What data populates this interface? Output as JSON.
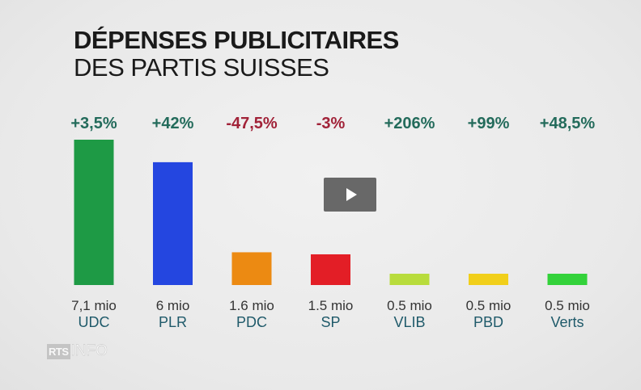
{
  "title": "DÉPENSES PUBLICITAIRES",
  "subtitle": "DES PARTIS SUISSES",
  "logo": {
    "left": "RTS",
    "right": "INFO"
  },
  "colors": {
    "positive": "#236b5b",
    "negative": "#a12238",
    "background": "#ededed"
  },
  "chart_data": {
    "type": "bar",
    "title": "DÉPENSES PUBLICITAIRES DES PARTIS SUISSES",
    "categories": [
      "UDC",
      "PLR",
      "PDC",
      "SP",
      "VLIB",
      "PBD",
      "Verts"
    ],
    "values": [
      7.1,
      6,
      1.6,
      1.5,
      0.5,
      0.5,
      0.5
    ],
    "value_labels": [
      "7,1 mio",
      "6 mio",
      "1.6 mio",
      "1.5 mio",
      "0.5 mio",
      "0.5 mio",
      "0.5 mio"
    ],
    "changes": [
      "+3,5%",
      "+42%",
      "-47,5%",
      "-3%",
      "+206%",
      "+99%",
      "+48,5%"
    ],
    "change_signs": [
      "positive",
      "positive",
      "negative",
      "negative",
      "positive",
      "positive",
      "positive"
    ],
    "bar_colors": [
      "#1e9a45",
      "#2446e0",
      "#ec8a12",
      "#e31e26",
      "#b8dc3c",
      "#f1cf1a",
      "#33d23a"
    ],
    "unit": "mio",
    "ylim": [
      0,
      7.1
    ],
    "grid": false
  }
}
